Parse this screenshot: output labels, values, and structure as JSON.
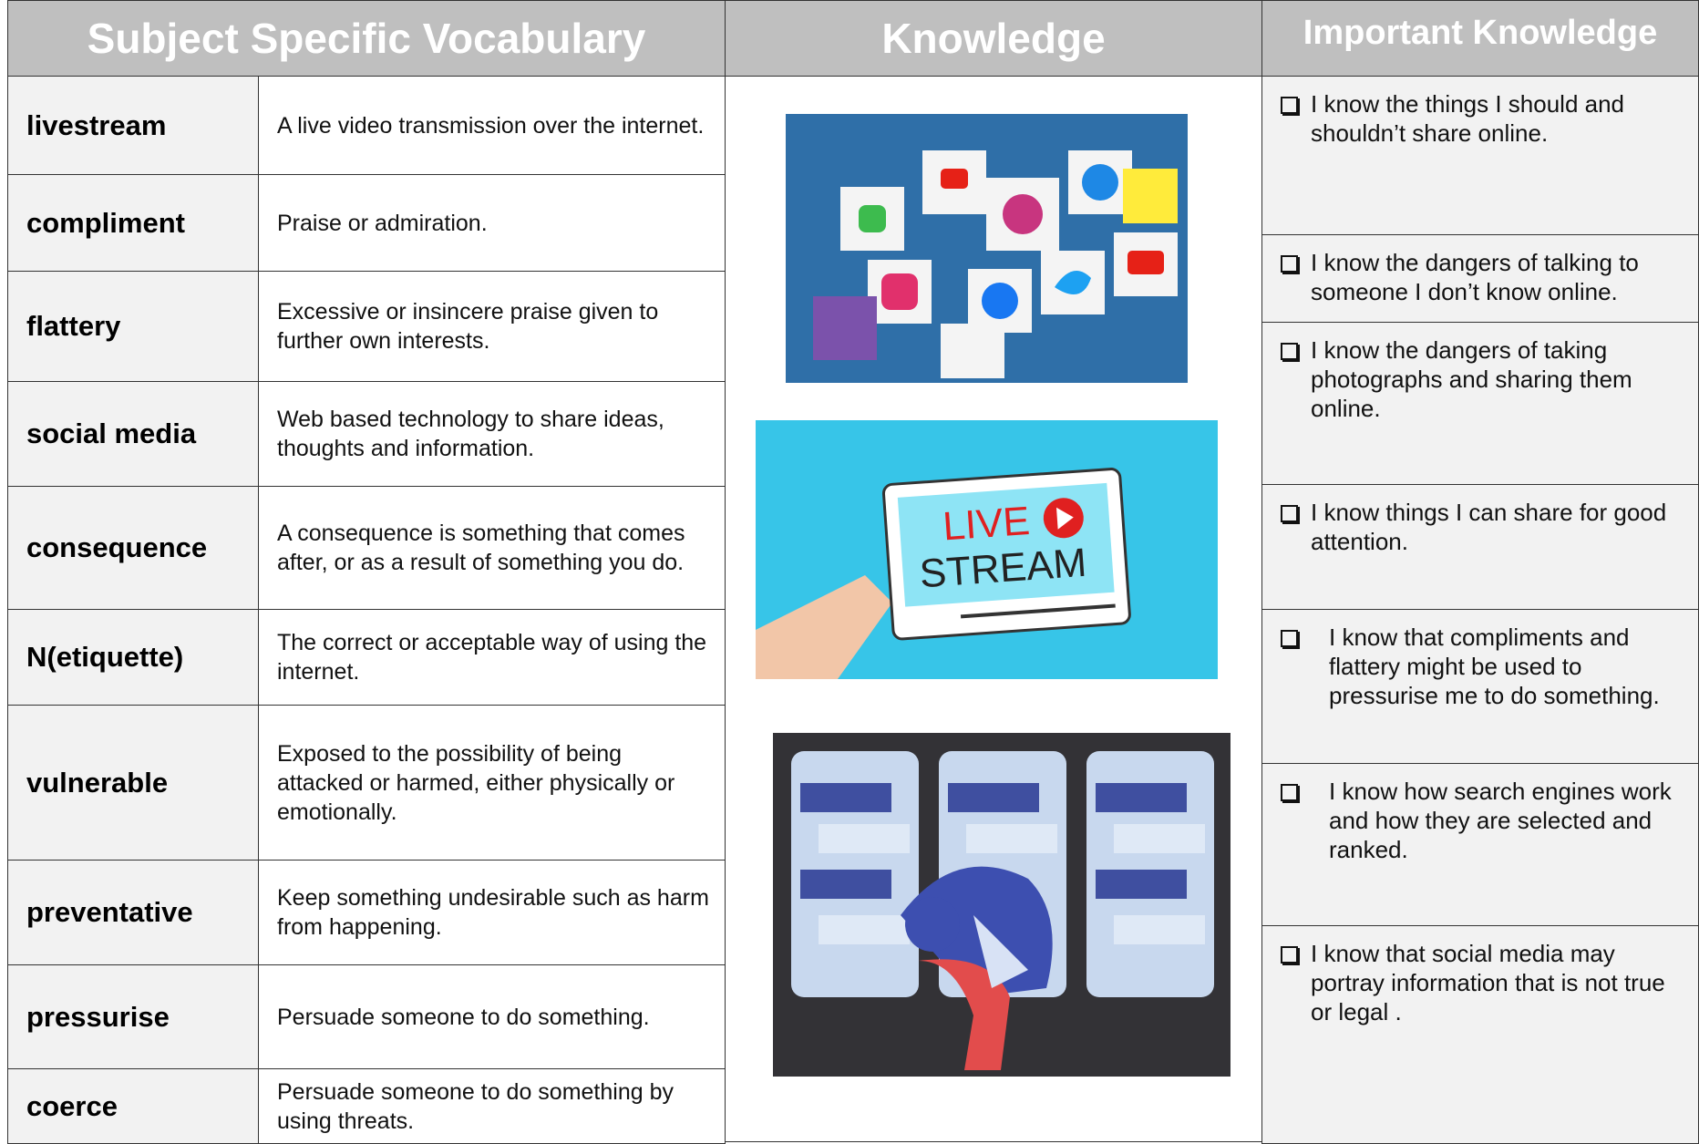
{
  "header": {
    "vocabulary": "Subject Specific Vocabulary",
    "knowledge": "Knowledge",
    "important": "Important Knowledge"
  },
  "vocabulary": [
    {
      "term": "livestream",
      "definition": "A live video transmission over the internet."
    },
    {
      "term": "compliment",
      "definition": "Praise or admiration."
    },
    {
      "term": "flattery",
      "definition": "Excessive or insincere praise given to further own interests."
    },
    {
      "term": "social media",
      "definition": "Web based technology to share ideas, thoughts and information."
    },
    {
      "term": "consequence",
      "definition": "A consequence is something that comes after, or as a result of something you do."
    },
    {
      "term": "N(etiquette)",
      "definition": "The correct or acceptable way of using the internet."
    },
    {
      "term": "vulnerable",
      "definition": "Exposed to the possibility of being attacked or harmed, either physically or emotionally."
    },
    {
      "term": "preventative",
      "definition": "Keep something undesirable such as harm from happening."
    },
    {
      "term": "pressurise",
      "definition": "Persuade someone to do something."
    },
    {
      "term": "coerce",
      "definition": "Persuade someone to do something by using threats."
    }
  ],
  "knowledge": {
    "images": [
      {},
      {
        "line1": "LIVE",
        "line2": "STREAM"
      },
      {}
    ]
  },
  "important_knowledge": [
    "I know the things I should and shouldn’t share online.",
    "I know the dangers of talking to someone I don’t know online.",
    "I know the dangers of taking photographs and sharing them online.",
    "I know things I can share for good attention.",
    "I know that compliments and flattery might be used to pressurise me to do something.",
    "I know how search engines work and how they are selected and ranked.",
    "I know that social media may portray information that is not true or legal ."
  ]
}
